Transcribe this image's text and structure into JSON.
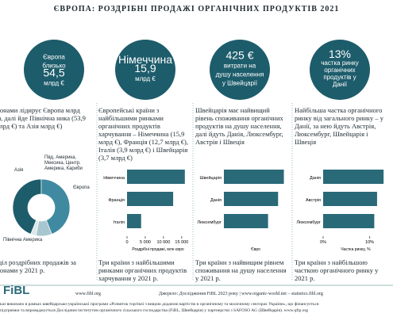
{
  "title": "ЄВРОПА: РОЗДРІБНІ ПРОДАЖІ ОРГАНІЧНИХ ПРОДУКТІВ 2021",
  "panels": [
    {
      "circle": [
        "Європа",
        "близько",
        "54,5",
        "млрд €"
      ],
      "text": "гіонами лідирує Європа млрд €), далі йде Північна ника (53,9 млрд €) та Азія млрд €)"
    },
    {
      "circle": [
        "Німеччина",
        "15,9",
        "млрд €"
      ],
      "text": "Європейські країни з найбільшими ринками органічних продуктів харчування – Німеччина (15,9 млрд €), Франція (12,7 млрд €), Італія (3,9 млрд €) і Швейцарія (3,7 млрд €)"
    },
    {
      "circle": [
        "425 €",
        "витрати на",
        "душу населення",
        "у Швейцарії"
      ],
      "text": "Швейцарія має найвищий рівень споживання органічних продуктів на душу населення, далі йдуть Данія, Люксембург, Австрія і Швеція"
    },
    {
      "circle": [
        "13%",
        "частка ринку",
        "органічних",
        "продуктів у",
        "Данії"
      ],
      "text": "Найбільша частка органічного ринку від загального ринку – у Данії, за нею йдуть Австрія, Люксембург, Швейцарія і Швеція"
    }
  ],
  "chart_data": [
    {
      "type": "pie",
      "categories": [
        "Європа",
        "Північна Америка",
        "Азія",
        "Пвд. Америка, Мексика, Центр. Америка, Кариби"
      ],
      "values": [
        44,
        44,
        9,
        3
      ],
      "colors": [
        "#1d5c6b",
        "#3f8aa0",
        "#a8c6cf",
        "#dbe7eb"
      ],
      "caption": "оділ роздрібних продажів за гіонами у 2021 р."
    },
    {
      "type": "bar",
      "categories": [
        "Німеччина",
        "Франція",
        "Італія"
      ],
      "values": [
        15870,
        12660,
        3870
      ],
      "color": "#2a6a78",
      "xlim": [
        0,
        17000
      ],
      "xticks": [
        0,
        {
          "value": 5000,
          "label": "5 000"
        },
        {
          "value": 10000,
          "label": "10 000"
        },
        {
          "value": 15000,
          "label": "15 000"
        }
      ],
      "xlabel": "Роздрібні продажі, млн євро",
      "caption": "Три країни з найбільшими ринками органічних продуктів харчування у 2021 р."
    },
    {
      "type": "bar",
      "categories": [
        "Швейцарія",
        "Данія",
        "Люксембург"
      ],
      "values": [
        425,
        384,
        313
      ],
      "color": "#2a6a78",
      "xlim": [
        0,
        450
      ],
      "xlabel": "Євро",
      "caption": "Три країни з найвищим рівнем споживання на душу населення у 2021 р."
    },
    {
      "type": "bar",
      "categories": [
        "Данія",
        "Австрія",
        "Люксембург"
      ],
      "values": [
        13,
        11.6,
        11
      ],
      "color": "#2a6a78",
      "xlim": [
        0,
        14
      ],
      "xticks": [
        {
          "value": 0,
          "label": "0%"
        },
        {
          "value": 10,
          "label": "10%"
        }
      ],
      "xlabel": "Частка ринку, %",
      "caption": "Три країни з найбільшою часткою органічного ринку у 2021 р."
    }
  ],
  "footer": {
    "logo": "FiBL",
    "url": "www.fibl.org",
    "source": "Джерело: Дослідження FiBL 2023 року | www.organic-world.net – statistics.fibl.org",
    "note1": "каз виконано в рамках швейцарсько-української програми «Розвиток торгівлі з вищою доданою вартістю в органічному та молочному секторах України», що фінансується",
    "note2": "підтримки та впроваджується Дослідним інститутом органічного сільського господарства (FiBL, Швейцарія) у партнерстві з SAFOSO AG (Швейцарія). www.qftp.org"
  }
}
